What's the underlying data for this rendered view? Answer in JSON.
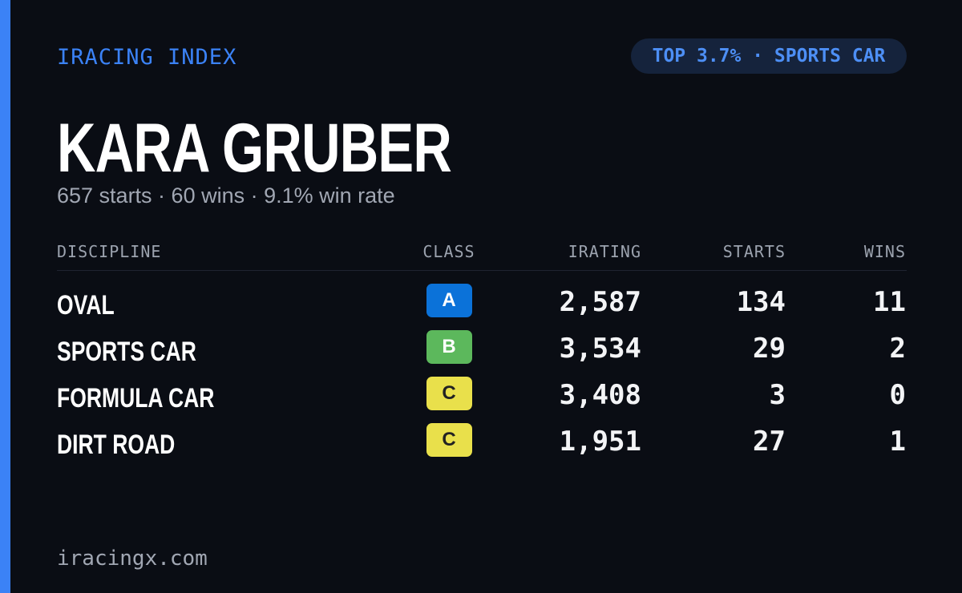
{
  "header": {
    "brand": "IRACING INDEX",
    "badge": "TOP 3.7% · SPORTS CAR"
  },
  "profile": {
    "name": "KARA GRUBER",
    "summary": "657 starts · 60 wins · 9.1% win rate"
  },
  "table": {
    "columns": [
      "DISCIPLINE",
      "CLASS",
      "IRATING",
      "STARTS",
      "WINS"
    ],
    "rows": [
      [
        "OVAL",
        "A",
        "2,587",
        "134",
        "11"
      ],
      [
        "SPORTS CAR",
        "B",
        "3,534",
        "29",
        "2"
      ],
      [
        "FORMULA CAR",
        "C",
        "3,408",
        "3",
        "0"
      ],
      [
        "DIRT ROAD",
        "C",
        "1,951",
        "27",
        "1"
      ]
    ]
  },
  "footer": {
    "site": "iracingx.com"
  }
}
